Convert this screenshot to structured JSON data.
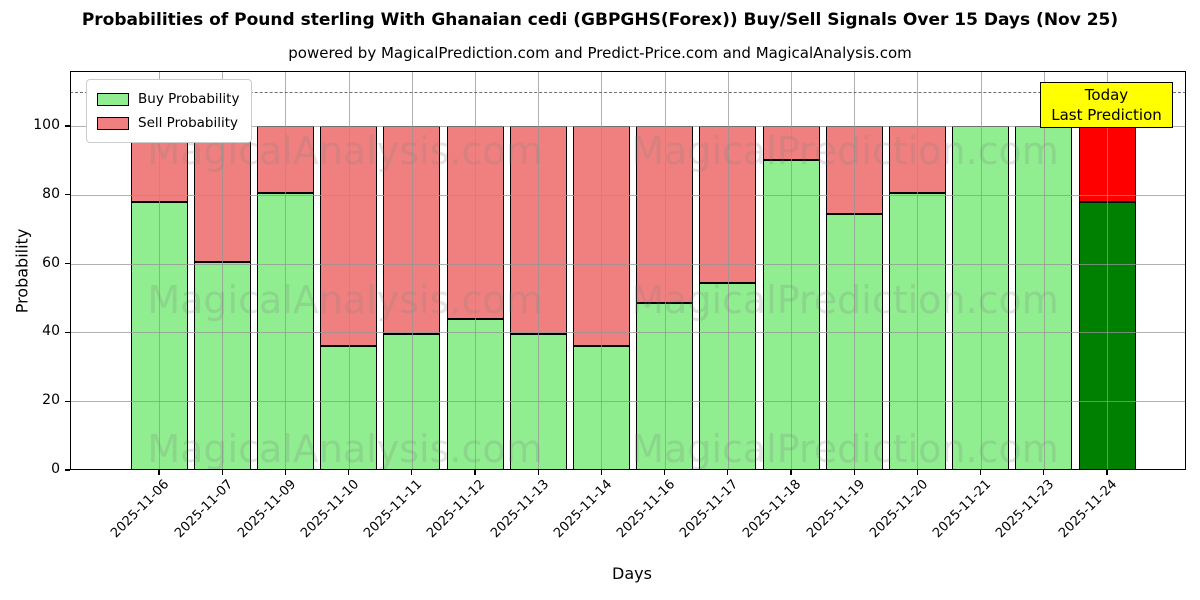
{
  "title": "Probabilities of Pound sterling With Ghanaian cedi (GBPGHS(Forex)) Buy/Sell Signals Over 15 Days (Nov 25)",
  "subtitle": "powered by MagicalPrediction.com and Predict-Price.com and MagicalAnalysis.com",
  "legend": {
    "buy_label": "Buy Probability",
    "sell_label": "Sell Probability"
  },
  "annotation": {
    "line1": "Today",
    "line2": "Last Prediction",
    "bg_color": "#ffff00"
  },
  "axes": {
    "xlabel": "Days",
    "ylabel": "Probability",
    "yticks": [
      0,
      20,
      40,
      60,
      80,
      100
    ]
  },
  "watermarks": {
    "left_text": "MagicalAnalysis.com",
    "right_text": "MagicalPrediction.com"
  },
  "colors": {
    "buy": "#90ee90",
    "sell": "#f08080",
    "today_buy": "#008000",
    "today_sell": "#ff0000",
    "edge": "#000000",
    "grid": "#969696",
    "dashed_line": "#707070",
    "annotation_bg": "#ffff00"
  },
  "chart_data": {
    "type": "bar",
    "stacked": true,
    "title": "Probabilities of Pound sterling With Ghanaian cedi (GBPGHS(Forex)) Buy/Sell Signals Over 15 Days (Nov 25)",
    "xlabel": "Days",
    "ylabel": "Probability",
    "ylim": [
      0,
      116
    ],
    "grid": true,
    "legend_position": "upper left",
    "dashed_hline_y": 110,
    "categories": [
      "2025-11-06",
      "2025-11-07",
      "2025-11-09",
      "2025-11-10",
      "2025-11-11",
      "2025-11-12",
      "2025-11-13",
      "2025-11-14",
      "2025-11-16",
      "2025-11-17",
      "2025-11-18",
      "2025-11-19",
      "2025-11-20",
      "2025-11-21",
      "2025-11-23",
      "2025-11-24"
    ],
    "series": [
      {
        "name": "Buy Probability",
        "color": "#90ee90",
        "values": [
          78,
          60.5,
          80.5,
          36,
          39.5,
          44,
          39.5,
          36,
          48.5,
          54.5,
          90,
          74.5,
          80.5,
          100,
          100,
          78
        ]
      },
      {
        "name": "Sell Probability",
        "color": "#f08080",
        "values": [
          22,
          39.5,
          19.5,
          64,
          60.5,
          56,
          60.5,
          64,
          51.5,
          45.5,
          10,
          25.5,
          19.5,
          0,
          0,
          22
        ]
      }
    ],
    "today_index": 15,
    "today_colors": {
      "buy": "#008000",
      "sell": "#ff0000"
    }
  }
}
